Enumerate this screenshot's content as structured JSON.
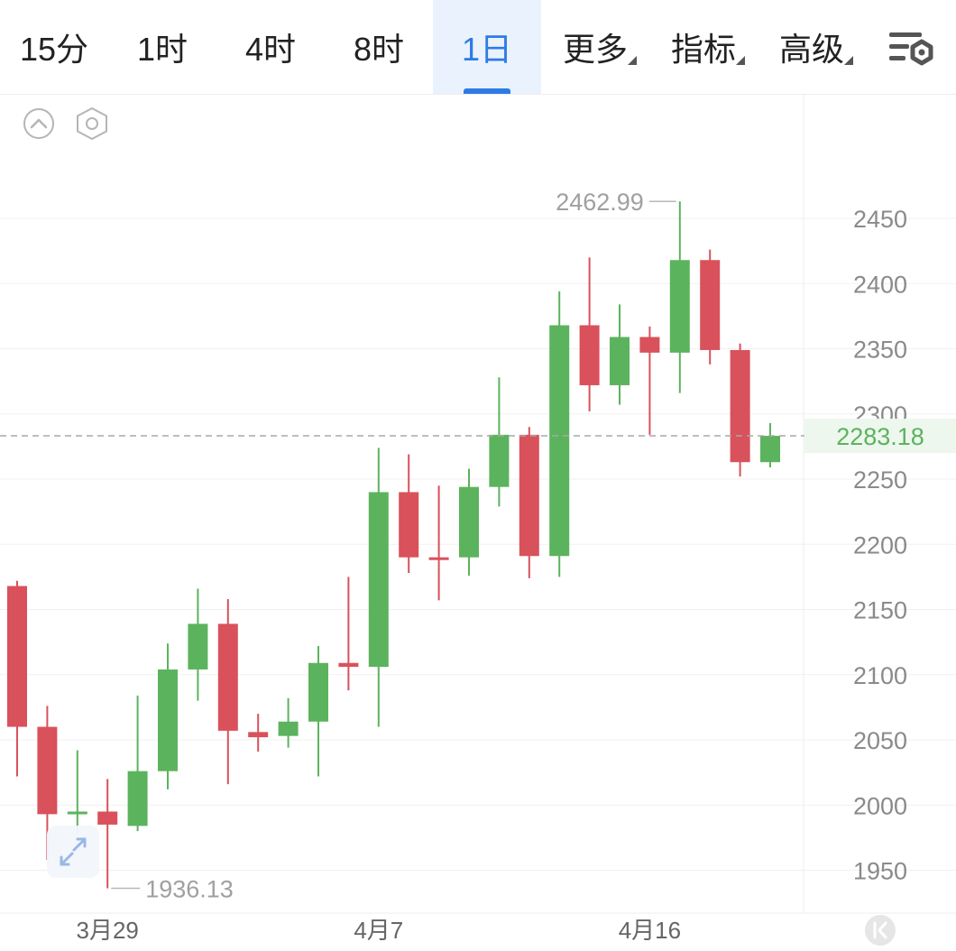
{
  "toolbar": {
    "tabs": [
      {
        "label": "15分",
        "active": false,
        "has_menu": false
      },
      {
        "label": "1时",
        "active": false,
        "has_menu": false
      },
      {
        "label": "4时",
        "active": false,
        "has_menu": false
      },
      {
        "label": "8时",
        "active": false,
        "has_menu": false
      },
      {
        "label": "1日",
        "active": true,
        "has_menu": false
      },
      {
        "label": "更多",
        "active": false,
        "has_menu": true
      },
      {
        "label": "指标",
        "active": false,
        "has_menu": true
      },
      {
        "label": "高级",
        "active": false,
        "has_menu": true
      }
    ],
    "settings_icon": "chart-settings-icon"
  },
  "controls": {
    "collapse_icon": "chevron-up-circle-icon",
    "settings_icon": "hexagon-settings-icon",
    "fullscreen_icon": "expand-icon",
    "scroll_latest_icon": "scroll-to-latest-icon"
  },
  "chart_data": {
    "type": "candlestick",
    "y_ticks": [
      1950,
      2000,
      2050,
      2100,
      2150,
      2200,
      2250,
      2300,
      2350,
      2400,
      2450
    ],
    "ylim": [
      1920,
      2535
    ],
    "x_tick_labels": [
      {
        "index": 3,
        "label": "3月29"
      },
      {
        "index": 12,
        "label": "4月7"
      },
      {
        "index": 21,
        "label": "4月16"
      }
    ],
    "current_price": 2283.18,
    "max_label": "2462.99",
    "min_label": "1936.13",
    "colors": {
      "up": "#5cb35d",
      "down": "#d9515b",
      "current": "#5cb35d"
    },
    "candles": [
      {
        "o": 2168,
        "h": 2172,
        "l": 2022,
        "c": 2060
      },
      {
        "o": 2060,
        "h": 2076,
        "l": 1958,
        "c": 1993
      },
      {
        "o": 1993,
        "h": 2042,
        "l": 1978,
        "c": 1995
      },
      {
        "o": 1995,
        "h": 2020,
        "l": 1936.13,
        "c": 1985
      },
      {
        "o": 1984,
        "h": 2084,
        "l": 1980,
        "c": 2026
      },
      {
        "o": 2026,
        "h": 2124,
        "l": 2012,
        "c": 2104
      },
      {
        "o": 2104,
        "h": 2166,
        "l": 2080,
        "c": 2139
      },
      {
        "o": 2139,
        "h": 2158,
        "l": 2016,
        "c": 2057
      },
      {
        "o": 2056,
        "h": 2070,
        "l": 2041,
        "c": 2052
      },
      {
        "o": 2053,
        "h": 2082,
        "l": 2044,
        "c": 2064
      },
      {
        "o": 2064,
        "h": 2122,
        "l": 2022,
        "c": 2109
      },
      {
        "o": 2109,
        "h": 2175,
        "l": 2088,
        "c": 2106
      },
      {
        "o": 2106,
        "h": 2274,
        "l": 2060,
        "c": 2240
      },
      {
        "o": 2240,
        "h": 2269,
        "l": 2178,
        "c": 2190
      },
      {
        "o": 2190,
        "h": 2245,
        "l": 2157,
        "c": 2188
      },
      {
        "o": 2190,
        "h": 2258,
        "l": 2176,
        "c": 2244
      },
      {
        "o": 2244,
        "h": 2328,
        "l": 2229,
        "c": 2284
      },
      {
        "o": 2284,
        "h": 2290,
        "l": 2174,
        "c": 2191
      },
      {
        "o": 2191,
        "h": 2394,
        "l": 2175,
        "c": 2368
      },
      {
        "o": 2368,
        "h": 2420,
        "l": 2302,
        "c": 2322
      },
      {
        "o": 2322,
        "h": 2384,
        "l": 2307,
        "c": 2359
      },
      {
        "o": 2359,
        "h": 2367,
        "l": 2284,
        "c": 2347
      },
      {
        "o": 2347,
        "h": 2462.99,
        "l": 2316,
        "c": 2418
      },
      {
        "o": 2418,
        "h": 2426,
        "l": 2338,
        "c": 2349
      },
      {
        "o": 2349,
        "h": 2354,
        "l": 2252,
        "c": 2263
      },
      {
        "o": 2263,
        "h": 2293,
        "l": 2259,
        "c": 2283.18
      }
    ]
  }
}
